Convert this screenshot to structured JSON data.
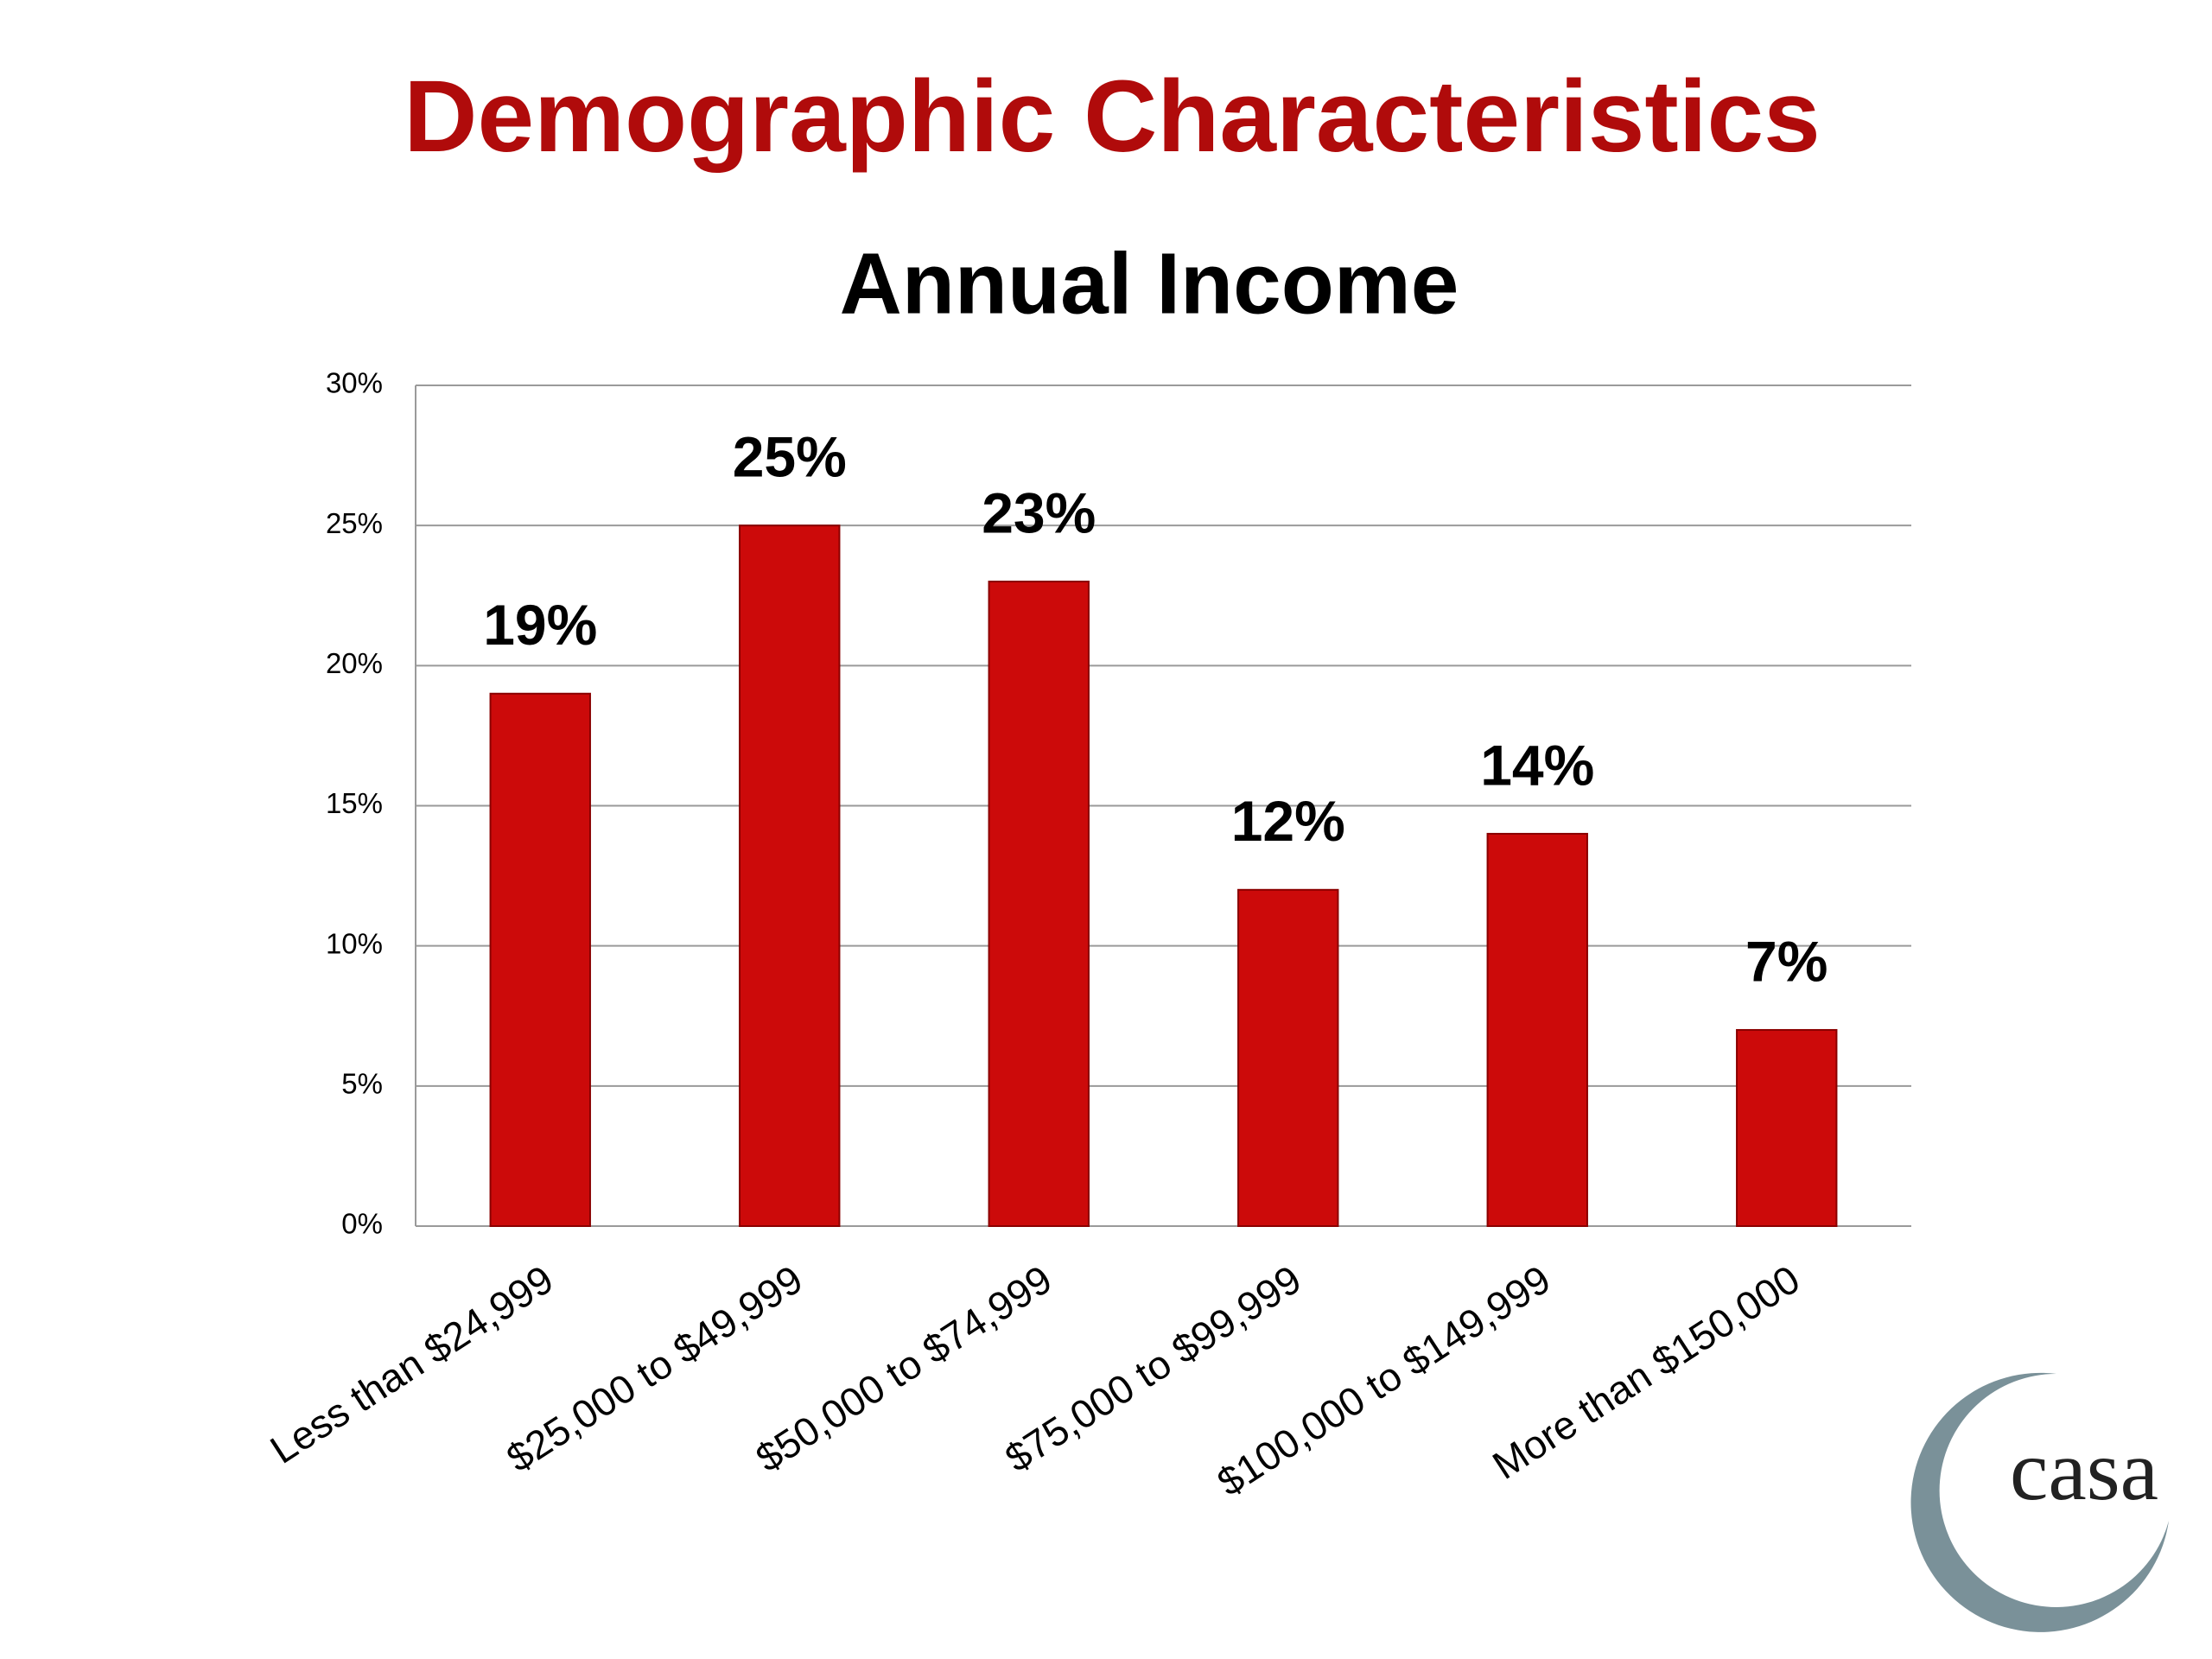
{
  "logo": "casa",
  "chart_data": {
    "type": "bar",
    "title": "Demographic Characteristics",
    "subtitle": "Annual Income",
    "categories": [
      "Less than $24,999",
      "$25,000 to $49,999",
      "$50,000 to $74,999",
      "$75,000 to $99,999",
      "$100,000 to $149,999",
      "More than $150,000"
    ],
    "values": [
      19,
      25,
      23,
      12,
      14,
      7
    ],
    "value_labels": [
      "19%",
      "25%",
      "23%",
      "12%",
      "14%",
      "7%"
    ],
    "color": "#cc0a0a",
    "ylim": [
      0,
      30
    ],
    "yticks": [
      {
        "value": 0,
        "label": "0%"
      },
      {
        "value": 5,
        "label": "5%"
      },
      {
        "value": 10,
        "label": "10%"
      },
      {
        "value": 15,
        "label": "15%"
      },
      {
        "value": 20,
        "label": "20%"
      },
      {
        "value": 25,
        "label": "25%"
      },
      {
        "value": 30,
        "label": "30%"
      }
    ],
    "grid": true
  }
}
